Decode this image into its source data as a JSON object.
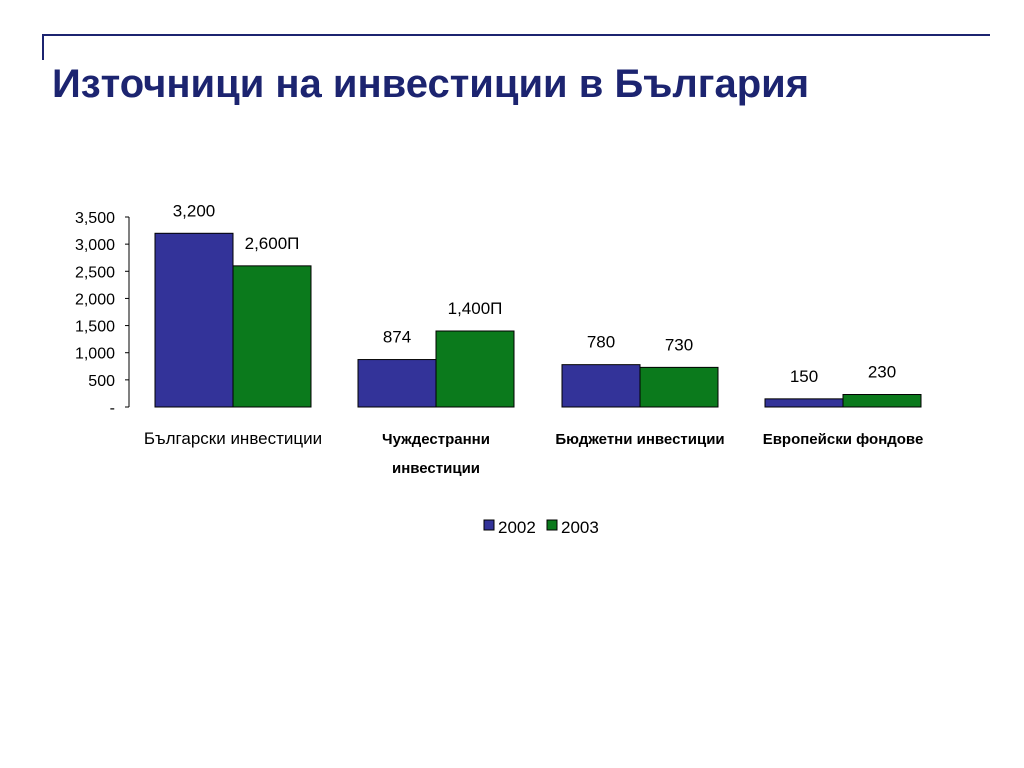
{
  "slide": {
    "title": "Източници на инвестиции в България",
    "accent_color": "#1c2470"
  },
  "chart_data": {
    "type": "bar",
    "categories": [
      "Български инвестиции",
      "Чуждестранни инвестиции",
      "Бюджетни инвестиции",
      "Европейски фондове"
    ],
    "category_label_lines": [
      [
        "Български инвестиции"
      ],
      [
        "Чуждестранни",
        "инвестиции"
      ],
      [
        "Бюджетни инвестиции"
      ],
      [
        "Европейски фондове"
      ]
    ],
    "category_label_bold": [
      false,
      true,
      true,
      true
    ],
    "series": [
      {
        "name": "2002",
        "color": "#333399",
        "values": [
          3200,
          874,
          780,
          150
        ],
        "labels": [
          "3,200",
          "874",
          "780",
          "150"
        ]
      },
      {
        "name": "2003",
        "color": "#0b7a1c",
        "values": [
          2600,
          1400,
          730,
          230
        ],
        "labels": [
          "2,600П",
          "1,400П",
          "730",
          "230"
        ]
      }
    ],
    "ylim": [
      0,
      3500
    ],
    "yticks": [
      0,
      500,
      1000,
      1500,
      2000,
      2500,
      3000,
      3500
    ],
    "ytick_labels": [
      "-",
      "500",
      "1,000",
      "1,500",
      "2,000",
      "2,500",
      "3,000",
      "3,500"
    ],
    "xlabel": "",
    "ylabel": "",
    "grid": false,
    "legend_position": "bottom"
  }
}
